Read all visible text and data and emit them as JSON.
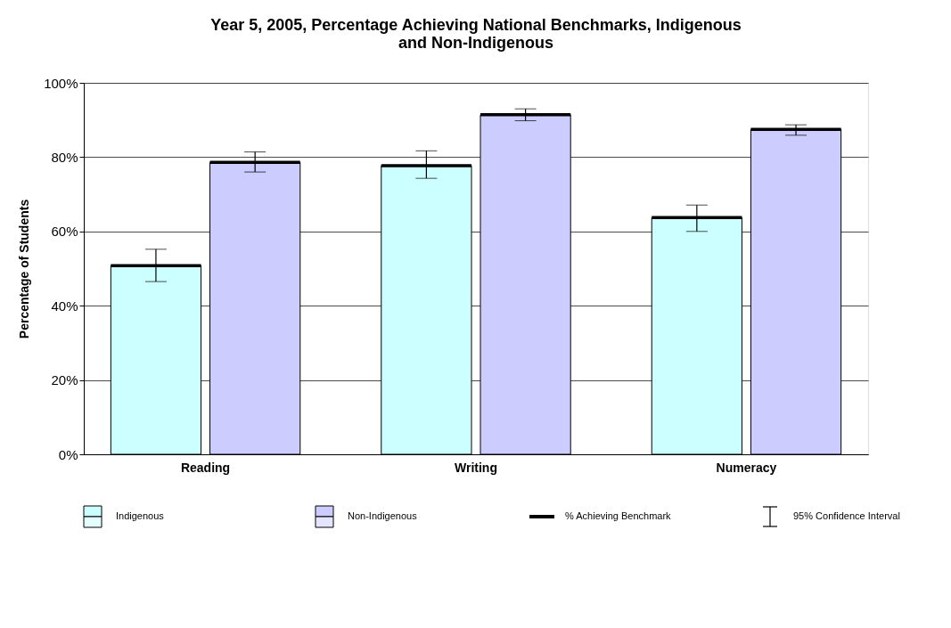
{
  "chart_data": {
    "type": "bar",
    "title": "Year 5, 2005, Percentage Achieving National Benchmarks, Indigenous and Non-Indigenous",
    "ylabel": "Percentage of Students",
    "categories": [
      "Reading",
      "Writing",
      "Numeracy"
    ],
    "series": [
      {
        "name": "Indigenous",
        "color": "#ccffff",
        "values": [
          50.8,
          77.7,
          63.7
        ],
        "errors": [
          [
            46.5,
            55.2
          ],
          [
            74.3,
            81.7
          ],
          [
            60.0,
            67.1
          ]
        ]
      },
      {
        "name": "Non-Indigenous",
        "color": "#ccccff",
        "values": [
          78.6,
          91.4,
          87.5
        ],
        "errors": [
          [
            76.0,
            81.4
          ],
          [
            89.8,
            93.0
          ],
          [
            85.9,
            88.7
          ]
        ]
      }
    ],
    "ylim": [
      0,
      100
    ],
    "yticks": [
      {
        "value": 0,
        "label": "0%"
      },
      {
        "value": 20,
        "label": "20%"
      },
      {
        "value": 40,
        "label": "40%"
      },
      {
        "value": 60,
        "label": "60%"
      },
      {
        "value": 80,
        "label": "80%"
      },
      {
        "value": 100,
        "label": "100%"
      }
    ],
    "grid": "y",
    "legend": "bottom",
    "annotations": [
      "% Achieving Benchmark",
      "95% Confidence Interval"
    ]
  }
}
